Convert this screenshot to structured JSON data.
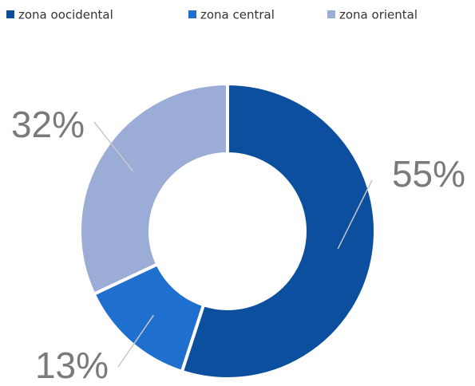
{
  "chart_data": {
    "type": "donut",
    "categories": [
      "zona oocidental",
      "zona central",
      "zona oriental"
    ],
    "values": [
      55,
      13,
      32
    ],
    "value_labels": [
      "55%",
      "13%",
      "32%"
    ],
    "colors": [
      "#0b4f9e",
      "#1f6fcf",
      "#9badd6"
    ],
    "legend": "top"
  }
}
